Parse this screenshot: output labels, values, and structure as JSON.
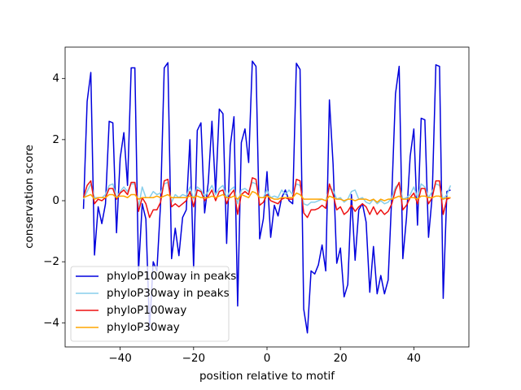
{
  "chart_data": {
    "type": "line",
    "xlabel": "position relative to motif",
    "ylabel": "conservation score",
    "x": [
      -50,
      -49,
      -48,
      -47,
      -46,
      -45,
      -44,
      -43,
      -42,
      -41,
      -40,
      -39,
      -38,
      -37,
      -36,
      -35,
      -34,
      -33,
      -32,
      -31,
      -30,
      -29,
      -28,
      -27,
      -26,
      -25,
      -24,
      -23,
      -22,
      -21,
      -20,
      -19,
      -18,
      -17,
      -16,
      -15,
      -14,
      -13,
      -12,
      -11,
      -10,
      -9,
      -8,
      -7,
      -6,
      -5,
      -4,
      -3,
      -2,
      -1,
      0,
      1,
      2,
      3,
      4,
      5,
      6,
      7,
      8,
      9,
      10,
      11,
      12,
      13,
      14,
      15,
      16,
      17,
      18,
      19,
      20,
      21,
      22,
      23,
      24,
      25,
      26,
      27,
      28,
      29,
      30,
      31,
      32,
      33,
      34,
      35,
      36,
      37,
      38,
      39,
      40,
      41,
      42,
      43,
      44,
      45,
      46,
      47,
      48,
      49,
      50
    ],
    "series": [
      {
        "name": "phyloP100way in peaks",
        "color": "#0000dd",
        "values": [
          -0.27,
          3.25,
          4.2,
          -1.78,
          -0.2,
          -0.75,
          -0.1,
          2.6,
          2.55,
          -1.05,
          1.4,
          2.23,
          0.5,
          4.35,
          4.35,
          -2.3,
          -0.1,
          -0.6,
          -4.2,
          -2.0,
          -2.3,
          -0.1,
          4.35,
          4.52,
          -1.9,
          -0.9,
          -1.8,
          -0.55,
          -0.3,
          2.0,
          -2.2,
          2.3,
          2.55,
          -0.4,
          0.6,
          2.6,
          0.25,
          3.0,
          2.85,
          -1.4,
          1.8,
          2.75,
          -3.45,
          1.9,
          2.35,
          1.25,
          4.57,
          4.4,
          -1.25,
          -0.6,
          0.95,
          -1.2,
          -0.15,
          -0.5,
          0.1,
          0.35,
          0.0,
          -0.1,
          4.5,
          4.3,
          -3.55,
          -4.33,
          -2.3,
          -2.4,
          -2.1,
          -1.45,
          -2.3,
          3.3,
          1.2,
          -2.05,
          -1.55,
          -3.15,
          -2.75,
          0.2,
          -1.95,
          -0.3,
          -0.1,
          -0.7,
          -3.0,
          -1.5,
          -3.05,
          -2.45,
          -3.05,
          -2.6,
          0.2,
          3.5,
          4.4,
          -1.9,
          -0.55,
          1.45,
          2.35,
          -0.8,
          2.7,
          2.65,
          -1.2,
          0.15,
          4.45,
          4.4,
          -3.2,
          0.3,
          0.35
        ]
      },
      {
        "name": "phyloP30way in peaks",
        "color": "#87ceeb",
        "values": [
          0.05,
          0.3,
          0.55,
          0.1,
          0.1,
          0.1,
          0.2,
          0.5,
          0.55,
          0.1,
          0.3,
          0.45,
          0.3,
          0.55,
          0.55,
          -0.2,
          0.45,
          0.1,
          0.1,
          0.3,
          0.2,
          0.25,
          0.55,
          0.6,
          -0.05,
          0.2,
          0.1,
          0.2,
          0.15,
          0.45,
          0.05,
          0.45,
          0.35,
          0.15,
          0.3,
          0.5,
          0.2,
          0.4,
          0.5,
          0.1,
          0.35,
          0.45,
          -0.1,
          0.35,
          0.4,
          0.3,
          0.6,
          0.55,
          0.1,
          0.1,
          0.35,
          0.1,
          0.15,
          0.1,
          0.35,
          0.2,
          0.35,
          0.2,
          0.55,
          0.5,
          -0.1,
          -0.15,
          -0.05,
          -0.05,
          0,
          0.05,
          0,
          0.4,
          0.35,
          0.05,
          0.1,
          -0.05,
          0.05,
          0.3,
          0.35,
          0.05,
          0.1,
          -0.05,
          -0.1,
          0.05,
          -0.1,
          0,
          -0.1,
          -0.05,
          0.1,
          0.45,
          0.55,
          0.05,
          0.1,
          0.2,
          0.45,
          0.1,
          0.55,
          0.45,
          0.1,
          0.3,
          0.55,
          0.5,
          0.05,
          0.2,
          0.5
        ]
      },
      {
        "name": "phyloP100way",
        "color": "#ee1111",
        "values": [
          0.1,
          0.5,
          0.65,
          -0.1,
          0.05,
          0,
          0.1,
          0.4,
          0.4,
          0.05,
          0.25,
          0.35,
          0.2,
          0.6,
          0.6,
          -0.35,
          0.1,
          -0.1,
          -0.55,
          -0.3,
          -0.3,
          -0.05,
          0.65,
          0.7,
          -0.2,
          -0.1,
          -0.2,
          -0.1,
          0,
          0.3,
          -0.2,
          0.35,
          0.3,
          0,
          0.15,
          0.35,
          0,
          0.3,
          0.35,
          -0.1,
          0.2,
          0.35,
          -0.45,
          0.2,
          0.3,
          0.2,
          0.75,
          0.7,
          -0.15,
          -0.05,
          0.2,
          0,
          -0.05,
          -0.1,
          0.05,
          0.1,
          0.05,
          0.05,
          0.7,
          0.65,
          -0.4,
          -0.55,
          -0.3,
          -0.3,
          -0.25,
          -0.15,
          -0.25,
          0.55,
          0.2,
          -0.3,
          -0.2,
          -0.45,
          -0.35,
          -0.15,
          -0.35,
          -0.2,
          -0.1,
          -0.2,
          -0.45,
          -0.2,
          -0.45,
          -0.3,
          -0.45,
          -0.35,
          -0.1,
          0.35,
          0.6,
          -0.3,
          -0.15,
          0.1,
          0.25,
          -0.1,
          0.4,
          0.4,
          -0.1,
          0.1,
          0.65,
          0.65,
          -0.45,
          0.05,
          0.1
        ]
      },
      {
        "name": "phyloP30way",
        "color": "#ffa500",
        "values": [
          0.1,
          0.15,
          0.2,
          0.05,
          0.1,
          0.1,
          0.1,
          0.2,
          0.2,
          0.1,
          0.15,
          0.15,
          0.1,
          0.2,
          0.2,
          0.05,
          0.1,
          0.1,
          0.1,
          0.1,
          0.15,
          0.1,
          0.15,
          0.2,
          0.1,
          0.1,
          0.1,
          0.1,
          0.1,
          0.15,
          0.1,
          0.15,
          0.1,
          0.1,
          0.1,
          0.15,
          0.1,
          0.15,
          0.2,
          0.1,
          0.1,
          0.15,
          0.05,
          0.2,
          0.15,
          0.1,
          0.3,
          0.25,
          0.1,
          0.1,
          0.15,
          0.1,
          0.05,
          0.05,
          0.1,
          0.1,
          0.1,
          0.1,
          0.25,
          0.2,
          0.05,
          0.05,
          0.05,
          0.05,
          0.05,
          0.05,
          0,
          0.15,
          0.1,
          0.05,
          0.05,
          0,
          0.05,
          0.05,
          0,
          0.05,
          0.05,
          0.05,
          0,
          0.05,
          -0.05,
          0.05,
          0,
          0.05,
          0.05,
          0.1,
          0.15,
          0.05,
          0.05,
          0.1,
          0.1,
          0.05,
          0.15,
          0.15,
          0.1,
          0.1,
          0.15,
          0.15,
          0.05,
          0.1,
          0.1
        ]
      }
    ],
    "xlim": [
      -55,
      55
    ],
    "ylim": [
      -4.79,
      5.03
    ],
    "xticks": [
      {
        "value": -40,
        "label": "−40"
      },
      {
        "value": -20,
        "label": "−20"
      },
      0,
      20,
      40
    ],
    "yticks": [
      {
        "value": -4,
        "label": "−4"
      },
      {
        "value": -2,
        "label": "−2"
      },
      0,
      2,
      4
    ],
    "legend": "lower left",
    "grid": false
  }
}
